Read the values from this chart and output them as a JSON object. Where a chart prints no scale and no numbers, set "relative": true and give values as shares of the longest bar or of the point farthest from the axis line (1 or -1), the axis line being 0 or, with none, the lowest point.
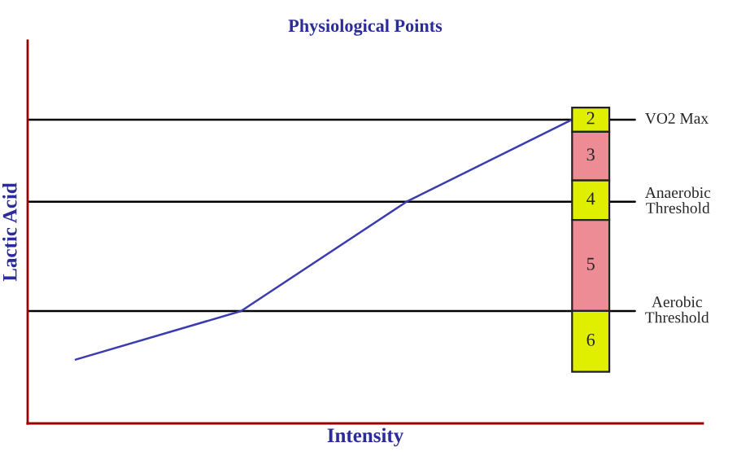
{
  "chart_data": {
    "type": "line",
    "title": "Physiological Points",
    "xlabel": "Intensity",
    "ylabel": "Lactic Acid",
    "relative": true,
    "categories": [
      null,
      null,
      null,
      null
    ],
    "series": [
      {
        "color": "#3b3bb0",
        "values": [
          0.21,
          0.37,
          0.73,
          1.0
        ]
      }
    ],
    "ref_lines": [
      {
        "axis": "y",
        "value": 1.0,
        "label": "VO2 Max",
        "color": "#000000"
      },
      {
        "axis": "y",
        "value": 0.73,
        "label": "Anaerobic\nThreshold",
        "color": "#000000"
      },
      {
        "axis": "y",
        "value": 0.37,
        "label": "Aerobic\nThreshold",
        "color": "#000000"
      }
    ],
    "bands": [
      {
        "axis": "y",
        "from": 0.96,
        "to": 1.04,
        "label": "2",
        "color": "#e0ee00"
      },
      {
        "axis": "y",
        "from": 0.8,
        "to": 0.96,
        "label": "3",
        "color": "#ee8c96"
      },
      {
        "axis": "y",
        "from": 0.67,
        "to": 0.8,
        "label": "4",
        "color": "#e0ee00"
      },
      {
        "axis": "y",
        "from": 0.37,
        "to": 0.67,
        "label": "5",
        "color": "#ee8c96"
      },
      {
        "axis": "y",
        "from": 0.17,
        "to": 0.37,
        "label": "6",
        "color": "#e0ee00"
      }
    ],
    "legend": false,
    "tick_labels": false
  }
}
